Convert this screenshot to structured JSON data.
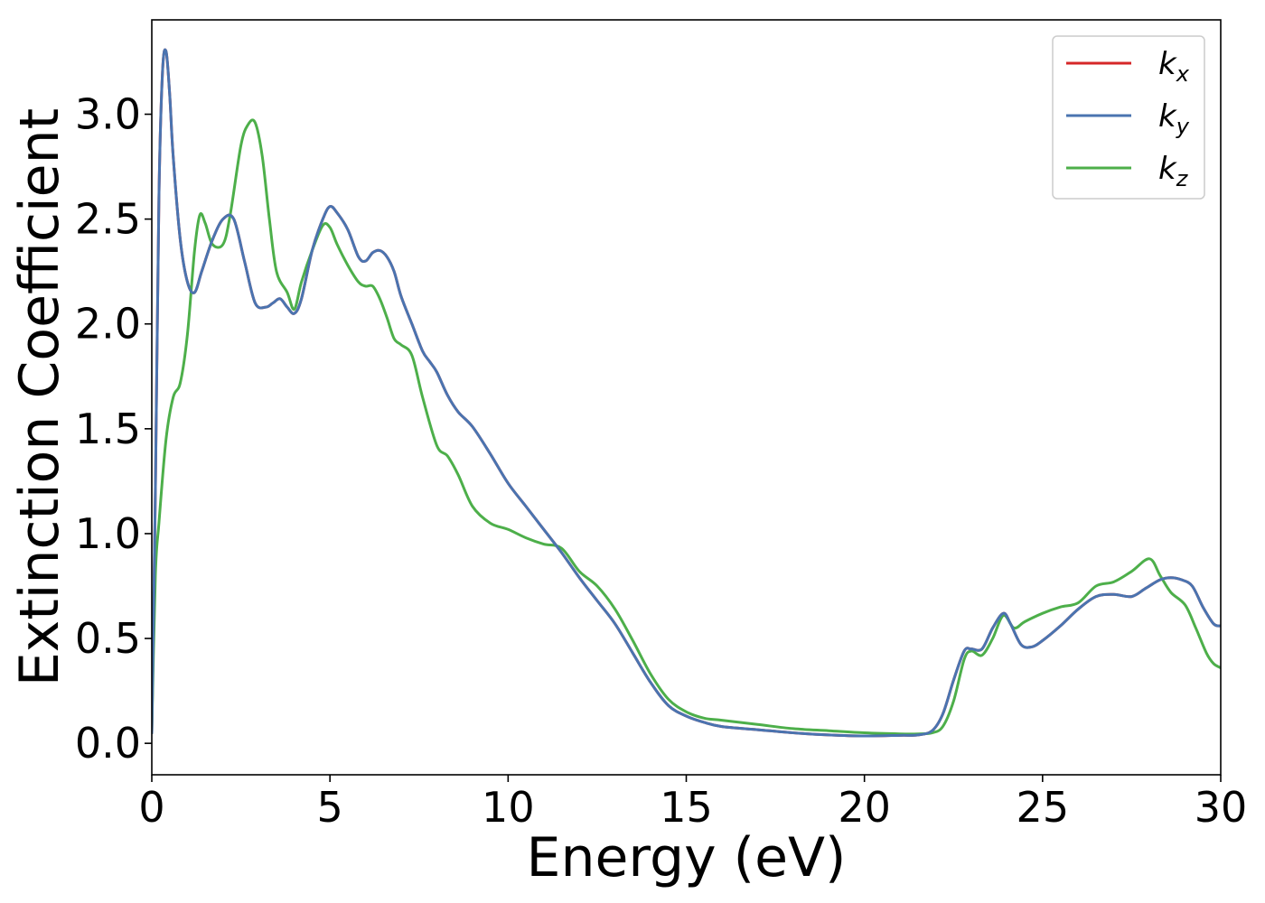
{
  "chart_data": {
    "type": "line",
    "xlabel": "Energy (eV)",
    "ylabel": "Extinction Coefficient",
    "xlim": [
      0,
      30
    ],
    "ylim": [
      -0.15,
      3.45
    ],
    "xticks": [
      0,
      5,
      10,
      15,
      20,
      25,
      30
    ],
    "xtick_labels": [
      "0",
      "5",
      "10",
      "15",
      "20",
      "25",
      "30"
    ],
    "yticks": [
      0.0,
      0.5,
      1.0,
      1.5,
      2.0,
      2.5,
      3.0
    ],
    "ytick_labels": [
      "0.0",
      "0.5",
      "1.0",
      "1.5",
      "2.0",
      "2.5",
      "3.0"
    ],
    "grid": false,
    "legend_position": "top-right",
    "series": [
      {
        "name": "k",
        "subscript": "x",
        "color": "#d62728",
        "x": [
          0,
          0.1,
          0.2,
          0.3,
          0.4,
          0.5,
          0.6,
          0.8,
          1.0,
          1.2,
          1.4,
          1.7,
          2.0,
          2.3,
          2.6,
          2.9,
          3.2,
          3.4,
          3.6,
          3.8,
          4.0,
          4.2,
          4.5,
          4.8,
          5.0,
          5.2,
          5.5,
          5.8,
          6.0,
          6.2,
          6.4,
          6.6,
          6.8,
          7.0,
          7.3,
          7.6,
          7.8,
          8.0,
          8.3,
          8.6,
          9.0,
          9.5,
          10.0,
          10.5,
          11.0,
          11.5,
          12.0,
          12.5,
          13.0,
          13.5,
          14.0,
          14.5,
          15.0,
          15.5,
          16.0,
          17.0,
          18.0,
          19.0,
          20.0,
          21.0,
          21.5,
          21.9,
          22.2,
          22.5,
          22.8,
          23.0,
          23.3,
          23.6,
          23.9,
          24.1,
          24.4,
          24.7,
          25.0,
          25.5,
          26.0,
          26.5,
          27.0,
          27.5,
          27.9,
          28.3,
          28.6,
          28.9,
          29.2,
          29.5,
          29.8,
          30.0
        ],
        "y": [
          0.05,
          1.2,
          2.6,
          3.2,
          3.3,
          3.1,
          2.8,
          2.4,
          2.2,
          2.15,
          2.25,
          2.4,
          2.5,
          2.5,
          2.3,
          2.1,
          2.08,
          2.1,
          2.12,
          2.08,
          2.05,
          2.12,
          2.35,
          2.5,
          2.56,
          2.53,
          2.45,
          2.32,
          2.3,
          2.34,
          2.35,
          2.32,
          2.25,
          2.13,
          2.0,
          1.87,
          1.82,
          1.77,
          1.66,
          1.58,
          1.51,
          1.38,
          1.24,
          1.13,
          1.02,
          0.91,
          0.79,
          0.68,
          0.57,
          0.43,
          0.29,
          0.18,
          0.13,
          0.1,
          0.08,
          0.065,
          0.05,
          0.04,
          0.035,
          0.038,
          0.04,
          0.06,
          0.14,
          0.3,
          0.44,
          0.45,
          0.45,
          0.55,
          0.62,
          0.57,
          0.47,
          0.46,
          0.49,
          0.56,
          0.64,
          0.7,
          0.71,
          0.7,
          0.74,
          0.78,
          0.79,
          0.78,
          0.75,
          0.65,
          0.57,
          0.56
        ]
      },
      {
        "name": "k",
        "subscript": "y",
        "color": "#4a74b0",
        "x": [
          0,
          0.1,
          0.2,
          0.3,
          0.4,
          0.5,
          0.6,
          0.8,
          1.0,
          1.2,
          1.4,
          1.7,
          2.0,
          2.3,
          2.6,
          2.9,
          3.2,
          3.4,
          3.6,
          3.8,
          4.0,
          4.2,
          4.5,
          4.8,
          5.0,
          5.2,
          5.5,
          5.8,
          6.0,
          6.2,
          6.4,
          6.6,
          6.8,
          7.0,
          7.3,
          7.6,
          7.8,
          8.0,
          8.3,
          8.6,
          9.0,
          9.5,
          10.0,
          10.5,
          11.0,
          11.5,
          12.0,
          12.5,
          13.0,
          13.5,
          14.0,
          14.5,
          15.0,
          15.5,
          16.0,
          17.0,
          18.0,
          19.0,
          20.0,
          21.0,
          21.5,
          21.9,
          22.2,
          22.5,
          22.8,
          23.0,
          23.3,
          23.6,
          23.9,
          24.1,
          24.4,
          24.7,
          25.0,
          25.5,
          26.0,
          26.5,
          27.0,
          27.5,
          27.9,
          28.3,
          28.6,
          28.9,
          29.2,
          29.5,
          29.8,
          30.0
        ],
        "y": [
          0.05,
          1.2,
          2.6,
          3.2,
          3.3,
          3.1,
          2.8,
          2.4,
          2.2,
          2.15,
          2.25,
          2.4,
          2.5,
          2.5,
          2.3,
          2.1,
          2.08,
          2.1,
          2.12,
          2.08,
          2.05,
          2.12,
          2.35,
          2.5,
          2.56,
          2.53,
          2.45,
          2.32,
          2.3,
          2.34,
          2.35,
          2.32,
          2.25,
          2.13,
          2.0,
          1.87,
          1.82,
          1.77,
          1.66,
          1.58,
          1.51,
          1.38,
          1.24,
          1.13,
          1.02,
          0.91,
          0.79,
          0.68,
          0.57,
          0.43,
          0.29,
          0.18,
          0.13,
          0.1,
          0.08,
          0.065,
          0.05,
          0.04,
          0.035,
          0.038,
          0.04,
          0.06,
          0.14,
          0.3,
          0.44,
          0.45,
          0.45,
          0.55,
          0.62,
          0.57,
          0.47,
          0.46,
          0.49,
          0.56,
          0.64,
          0.7,
          0.71,
          0.7,
          0.74,
          0.78,
          0.79,
          0.78,
          0.75,
          0.65,
          0.57,
          0.56
        ]
      },
      {
        "name": "k",
        "subscript": "z",
        "color": "#4daf4a",
        "x": [
          0,
          0.1,
          0.2,
          0.4,
          0.6,
          0.8,
          1.0,
          1.2,
          1.35,
          1.5,
          1.7,
          2.0,
          2.2,
          2.5,
          2.7,
          2.9,
          3.1,
          3.3,
          3.5,
          3.8,
          4.0,
          4.2,
          4.5,
          4.8,
          5.0,
          5.2,
          5.5,
          5.8,
          6.0,
          6.2,
          6.4,
          6.6,
          6.8,
          7.0,
          7.3,
          7.6,
          8.0,
          8.3,
          8.6,
          9.0,
          9.5,
          10.0,
          10.5,
          11.0,
          11.5,
          12.0,
          12.5,
          13.0,
          13.5,
          14.0,
          14.5,
          15.0,
          15.5,
          16.0,
          17.0,
          18.0,
          19.0,
          20.0,
          21.0,
          21.5,
          21.9,
          22.2,
          22.5,
          22.8,
          23.0,
          23.3,
          23.6,
          23.9,
          24.2,
          24.5,
          25.0,
          25.5,
          26.0,
          26.5,
          27.0,
          27.5,
          28.0,
          28.3,
          28.6,
          29.0,
          29.3,
          29.6,
          29.8,
          30.0
        ],
        "y": [
          0.05,
          0.8,
          1.05,
          1.45,
          1.65,
          1.72,
          1.95,
          2.35,
          2.52,
          2.48,
          2.38,
          2.38,
          2.52,
          2.85,
          2.95,
          2.96,
          2.8,
          2.5,
          2.25,
          2.15,
          2.07,
          2.2,
          2.35,
          2.47,
          2.46,
          2.38,
          2.28,
          2.2,
          2.18,
          2.18,
          2.12,
          2.03,
          1.93,
          1.9,
          1.85,
          1.65,
          1.42,
          1.37,
          1.28,
          1.13,
          1.05,
          1.02,
          0.98,
          0.95,
          0.93,
          0.82,
          0.75,
          0.64,
          0.49,
          0.33,
          0.21,
          0.15,
          0.12,
          0.11,
          0.09,
          0.07,
          0.06,
          0.05,
          0.045,
          0.045,
          0.05,
          0.08,
          0.2,
          0.4,
          0.44,
          0.42,
          0.5,
          0.61,
          0.55,
          0.58,
          0.62,
          0.65,
          0.67,
          0.75,
          0.77,
          0.82,
          0.88,
          0.8,
          0.72,
          0.66,
          0.55,
          0.43,
          0.38,
          0.36
        ]
      }
    ]
  }
}
